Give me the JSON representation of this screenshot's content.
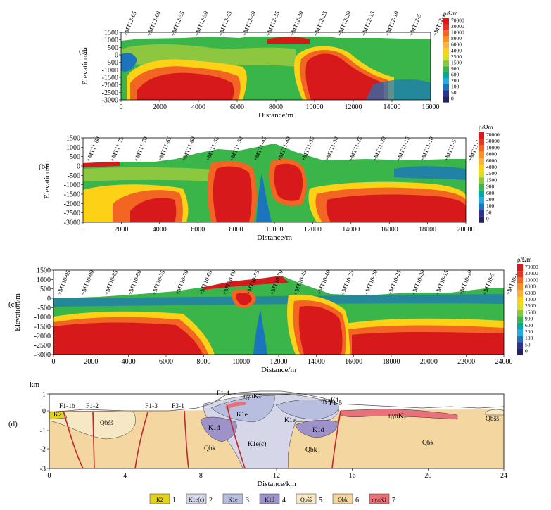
{
  "panels": [
    {
      "label": "(a)",
      "ylabel": "Elevation/m",
      "xlabel": "Distance/m",
      "yticks": [
        "1500",
        "1000",
        "500",
        "0",
        "-500",
        "-1000",
        "-1500",
        "-2000",
        "-2500",
        "-3000"
      ],
      "xticks": [
        "0",
        "2000",
        "4000",
        "6000",
        "8000",
        "10000",
        "12000",
        "14000",
        "16000"
      ],
      "stations": [
        "MT12-65",
        "MT12-60",
        "MT12-55",
        "MT12-50",
        "MT12-45",
        "MT12-40",
        "MT12-35",
        "MT12-30",
        "MT12-25",
        "MT12-20",
        "MT12-15",
        "MT12-10",
        "MT12-5",
        "MT12-1"
      ],
      "colorbar": {
        "title": "ρ/Ωm",
        "labels": [
          "70000",
          "30000",
          "10000",
          "8000",
          "6000",
          "4000",
          "2500",
          "1500",
          "900",
          "600",
          "200",
          "100",
          "50",
          "0"
        ]
      }
    },
    {
      "label": "(b)",
      "ylabel": "Elevation/m",
      "xlabel": "Distance/m",
      "yticks": [
        "1500",
        "1000",
        "500",
        "0",
        "-500",
        "-1000",
        "-1500",
        "-2000",
        "-2500",
        "-3000"
      ],
      "xticks": [
        "0",
        "2000",
        "4000",
        "6000",
        "8000",
        "10000",
        "12000",
        "14000",
        "16000",
        "18000",
        "20000"
      ],
      "stations": [
        "MT11-80",
        "MT11-75",
        "MT11-70",
        "MT11-65",
        "MT11-60",
        "MT11-55",
        "MT11-50",
        "MT11-45",
        "MT11-40",
        "MT11-35",
        "MT11-30",
        "MT11-25",
        "MT11-20",
        "MT11-15",
        "MT11-10",
        "MT11-5",
        "MT11-1"
      ],
      "colorbar": {
        "title": "ρ/Ωm",
        "labels": [
          "70000",
          "30000",
          "10000",
          "8000",
          "6000",
          "4000",
          "2500",
          "1500",
          "900",
          "600",
          "200",
          "100",
          "50",
          "0"
        ]
      }
    },
    {
      "label": "(c)",
      "ylabel": "Elevation/m",
      "xlabel": "Distance/m",
      "yticks": [
        "1500",
        "1000",
        "500",
        "0",
        "-500",
        "-1000",
        "-1500",
        "-2000",
        "-2500",
        "-3000"
      ],
      "xticks": [
        "0",
        "2000",
        "4000",
        "6000",
        "8000",
        "10000",
        "12000",
        "14000",
        "16000",
        "18000",
        "20000",
        "22000",
        "24000"
      ],
      "stations": [
        "MT10-95",
        "MT10-90",
        "MT10-85",
        "MT10-80",
        "MT10-75",
        "MT10-70",
        "MT10-65",
        "MT10-60",
        "MT10-55",
        "MT10-50",
        "MT10-45",
        "MT10-40",
        "MT10-35",
        "MT10-30",
        "MT10-25",
        "MT10-20",
        "MT10-15",
        "MT10-10",
        "MT10-5",
        "MT10-1"
      ],
      "colorbar": {
        "title": "ρ/Ωm",
        "labels": [
          "70000",
          "30000",
          "10000",
          "8000",
          "6000",
          "4000",
          "2500",
          "1500",
          "900",
          "600",
          "200",
          "100",
          "50",
          "0"
        ]
      }
    }
  ],
  "colorbar_colors": [
    "#d7191c",
    "#e6361f",
    "#f26522",
    "#f7941d",
    "#fbb040",
    "#fcd116",
    "#d7e021",
    "#8dc63f",
    "#39b54a",
    "#00a99d",
    "#27aae1",
    "#1c75bc",
    "#2e3192",
    "#262262"
  ],
  "geology": {
    "label": "(d)",
    "ylabel": "km",
    "yticks": [
      "1",
      "0",
      "-1",
      "-2",
      "-3"
    ],
    "xticks": [
      "0",
      "4",
      "8",
      "12",
      "16",
      "20",
      "24"
    ],
    "xlabel": "Distance/km",
    "faults": [
      "F1-1b",
      "F1-2",
      "F1-3",
      "F3-1",
      "F1-4",
      "F1-5"
    ],
    "units": {
      "k2": "K2",
      "k1ec": "K1e(c)",
      "k1e": "K1e",
      "k1d": "K1d",
      "qbss": "Qbŝŝ",
      "qbk": "Qbk",
      "intrusive": "ηγπK1"
    },
    "colors": {
      "k2": "#e2d21e",
      "k1ec": "#d5d7e8",
      "k1e": "#b7bedf",
      "k1d": "#9d93c9",
      "qbss": "#f6e8c4",
      "qbk": "#f4d6a0",
      "intrusive": "#e9727a"
    }
  },
  "legend": [
    {
      "code": "K2",
      "num": "1",
      "color": "#e2d21e"
    },
    {
      "code": "K1e(c)",
      "num": "2",
      "color": "#d5d7e8"
    },
    {
      "code": "K1e",
      "num": "3",
      "color": "#b7bedf"
    },
    {
      "code": "K1d",
      "num": "4",
      "color": "#9d93c9"
    },
    {
      "code": "Qbŝŝ",
      "num": "5",
      "color": "#f6e8c4"
    },
    {
      "code": "Qbk",
      "num": "6",
      "color": "#f4d6a0"
    },
    {
      "code": "ηγπK1",
      "num": "7",
      "color": "#e9727a"
    }
  ]
}
